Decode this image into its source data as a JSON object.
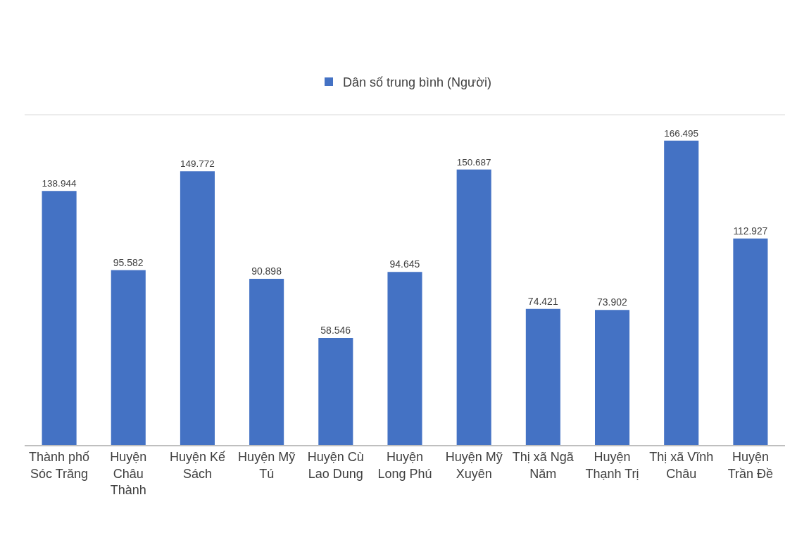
{
  "chart_data": {
    "type": "bar",
    "categories": [
      "Thành phố Sóc Trăng",
      "Huyện Châu Thành",
      "Huyện Kế Sách",
      "Huyện Mỹ Tú",
      "Huyện Cù Lao Dung",
      "Huyện Long Phú",
      "Huyện Mỹ Xuyên",
      "Thị xã Ngã Năm",
      "Huyện Thạnh Trị",
      "Thị xã Vĩnh Châu",
      "Huyện Trần Đề"
    ],
    "series": [
      {
        "name": "Dân số trung bình (Người)",
        "color": "#4472c4",
        "values": [
          138944,
          95582,
          149772,
          90898,
          58546,
          94645,
          150687,
          74421,
          73902,
          166495,
          112927
        ],
        "value_labels": [
          "138.944",
          "95.582",
          "149.772",
          "90.898",
          "58.546",
          "94.645",
          "150.687",
          "74.421",
          "73.902",
          "166.495",
          "112.927"
        ]
      }
    ],
    "legend": "top",
    "tick_labels": "x"
  }
}
